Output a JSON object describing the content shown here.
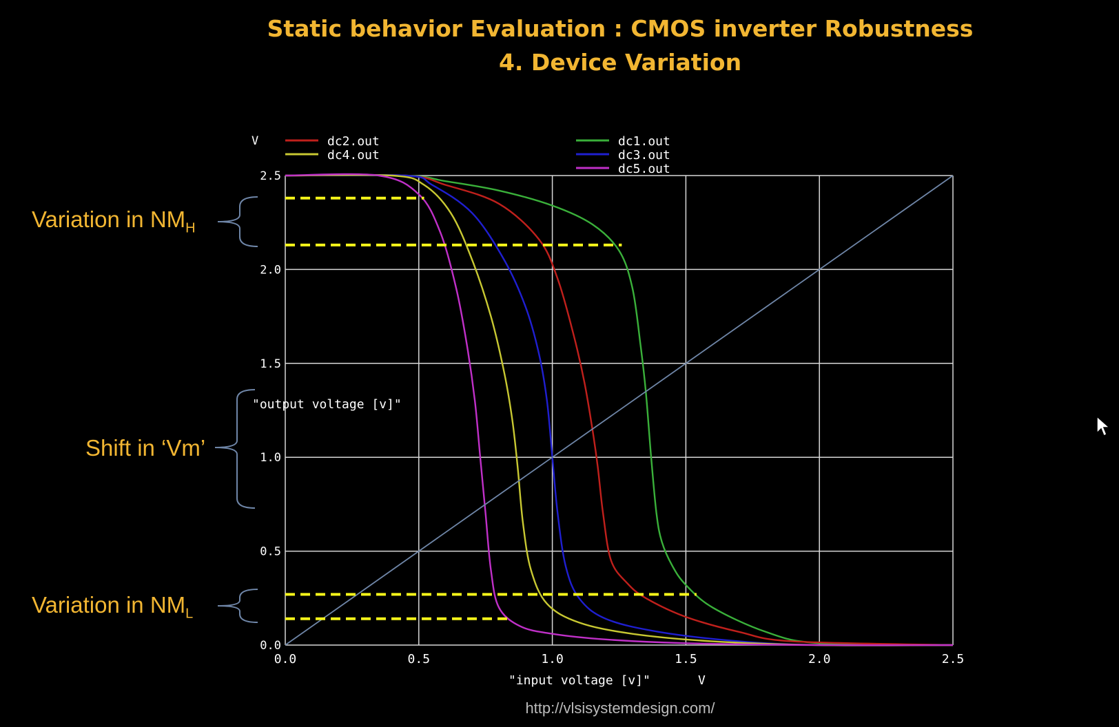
{
  "slide": {
    "title_line1": "Static behavior Evaluation : CMOS inverter Robustness",
    "title_line2": "4. Device Variation",
    "url": "http://vlsisystemdesign.com/",
    "annotation_nmh": "Variation in NM",
    "annotation_nmh_sub": "H",
    "annotation_vm": "Shift in ‘Vm’",
    "annotation_nml": "Variation in NM",
    "annotation_nml_sub": "L"
  },
  "colors": {
    "title": "#f2b632",
    "dc1": "#3ab03a",
    "dc2": "#c0201c",
    "dc3": "#1f1fd0",
    "dc4": "#c8c832",
    "dc5": "#c030c8",
    "diagonal": "#6f86a8",
    "dashes": "#f5f51a"
  },
  "chart_data": {
    "type": "line",
    "ylabel_unit": "V",
    "xlabel": "\"input voltage [v]\"",
    "xlabel_unit": "V",
    "ylabel": "\"output voltage [v]\"",
    "xlim": [
      0,
      2.5
    ],
    "ylim": [
      0,
      2.5
    ],
    "xticks": [
      "0.0",
      "0.5",
      "1.0",
      "1.5",
      "2.0",
      "2.5"
    ],
    "yticks": [
      "0.0",
      "0.5",
      "1.0",
      "1.5",
      "2.0",
      "2.5"
    ],
    "grid": true,
    "legend": [
      {
        "name": "dc2.out",
        "color_key": "dc2"
      },
      {
        "name": "dc4.out",
        "color_key": "dc4"
      },
      {
        "name": "dc1.out",
        "color_key": "dc1"
      },
      {
        "name": "dc3.out",
        "color_key": "dc3"
      },
      {
        "name": "dc5.out",
        "color_key": "dc5"
      }
    ],
    "series": [
      {
        "name": "dc1.out",
        "color_key": "dc1",
        "x": [
          0,
          0.45,
          0.6,
          0.8,
          1.0,
          1.15,
          1.25,
          1.3,
          1.33,
          1.35,
          1.37,
          1.39,
          1.41,
          1.45,
          1.5,
          1.6,
          1.8,
          2.0,
          2.5
        ],
        "y": [
          2.5,
          2.5,
          2.47,
          2.42,
          2.34,
          2.24,
          2.1,
          1.9,
          1.6,
          1.35,
          1.0,
          0.7,
          0.55,
          0.42,
          0.32,
          0.2,
          0.07,
          0.01,
          0.0
        ]
      },
      {
        "name": "dc2.out",
        "color_key": "dc2",
        "x": [
          0,
          0.45,
          0.6,
          0.8,
          0.95,
          1.02,
          1.08,
          1.12,
          1.15,
          1.17,
          1.19,
          1.22,
          1.28,
          1.35,
          1.5,
          1.7,
          1.9,
          2.5
        ],
        "y": [
          2.5,
          2.5,
          2.45,
          2.35,
          2.16,
          1.95,
          1.65,
          1.4,
          1.15,
          0.95,
          0.7,
          0.45,
          0.33,
          0.25,
          0.15,
          0.07,
          0.02,
          0.0
        ]
      },
      {
        "name": "dc3.out",
        "color_key": "dc3",
        "x": [
          0,
          0.45,
          0.55,
          0.7,
          0.82,
          0.9,
          0.95,
          0.98,
          1.0,
          1.02,
          1.05,
          1.1,
          1.2,
          1.4,
          1.7,
          2.0,
          2.5
        ],
        "y": [
          2.5,
          2.5,
          2.45,
          2.3,
          2.05,
          1.8,
          1.55,
          1.3,
          1.0,
          0.7,
          0.42,
          0.25,
          0.14,
          0.07,
          0.02,
          0.0,
          0.0
        ]
      },
      {
        "name": "dc4.out",
        "color_key": "dc4",
        "x": [
          0,
          0.4,
          0.52,
          0.62,
          0.7,
          0.77,
          0.82,
          0.85,
          0.87,
          0.89,
          0.92,
          0.98,
          1.1,
          1.3,
          1.6,
          2.0,
          2.5
        ],
        "y": [
          2.5,
          2.5,
          2.45,
          2.3,
          2.05,
          1.75,
          1.45,
          1.2,
          0.95,
          0.65,
          0.4,
          0.22,
          0.12,
          0.06,
          0.02,
          0.0,
          0.0
        ]
      },
      {
        "name": "dc5.out",
        "color_key": "dc5",
        "x": [
          0,
          0.35,
          0.5,
          0.58,
          0.64,
          0.68,
          0.71,
          0.73,
          0.75,
          0.77,
          0.8,
          0.88,
          1.0,
          1.2,
          1.5,
          2.0,
          2.5
        ],
        "y": [
          2.5,
          2.5,
          2.4,
          2.2,
          1.9,
          1.6,
          1.3,
          1.0,
          0.7,
          0.4,
          0.2,
          0.1,
          0.06,
          0.03,
          0.01,
          0.0,
          0.0
        ]
      },
      {
        "name": "",
        "color_key": "diagonal",
        "x": [
          0,
          2.5
        ],
        "y": [
          0,
          2.5
        ]
      }
    ],
    "annotations": [
      {
        "type": "dashed-hline",
        "y": 2.38,
        "x": [
          0,
          0.52
        ]
      },
      {
        "type": "dashed-hline",
        "y": 2.13,
        "x": [
          0,
          1.26
        ]
      },
      {
        "type": "dashed-hline",
        "y": 0.27,
        "x": [
          0,
          1.54
        ]
      },
      {
        "type": "dashed-hline",
        "y": 0.14,
        "x": [
          0,
          0.84
        ]
      }
    ]
  }
}
